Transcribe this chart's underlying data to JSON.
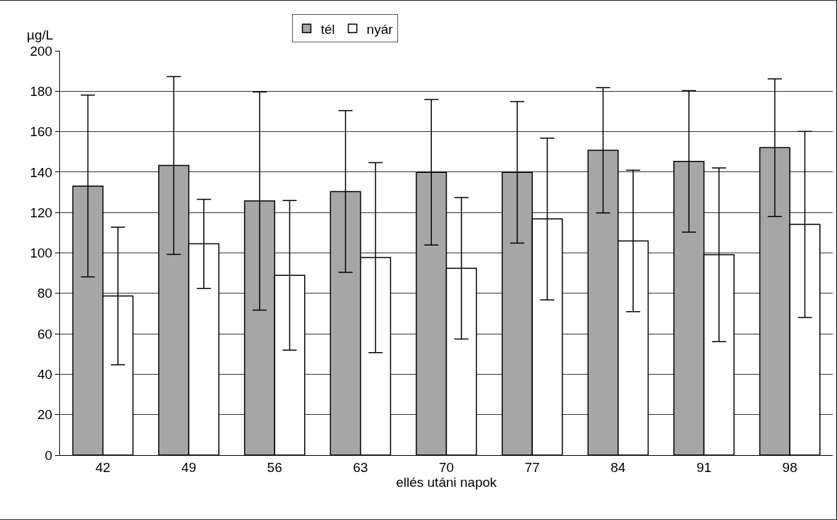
{
  "chart_data": {
    "type": "bar",
    "xlabel": "ellés utáni napok",
    "ylabel": "µg/L",
    "categories": [
      "42",
      "49",
      "56",
      "63",
      "70",
      "77",
      "84",
      "91",
      "98"
    ],
    "series": [
      {
        "name": "tél",
        "color": "#a6a6a6",
        "values": [
          133.1,
          143.3,
          125.7,
          130.4,
          139.9,
          139.9,
          150.8,
          145.3,
          152.1
        ],
        "errors": [
          45,
          44,
          54,
          40,
          36,
          35,
          31,
          35,
          34
        ]
      },
      {
        "name": "nyár",
        "color": "#ffffff",
        "values": [
          78.7,
          104.5,
          88.9,
          97.7,
          92.4,
          116.8,
          105.9,
          99.1,
          114.1
        ],
        "errors": [
          34,
          22,
          37,
          47,
          35,
          40,
          35,
          43,
          46
        ]
      }
    ],
    "ylim": [
      0,
      200
    ],
    "yticks": [
      0,
      20,
      40,
      60,
      80,
      100,
      120,
      140,
      160,
      180,
      200
    ],
    "grid": "y",
    "legend": "top"
  }
}
